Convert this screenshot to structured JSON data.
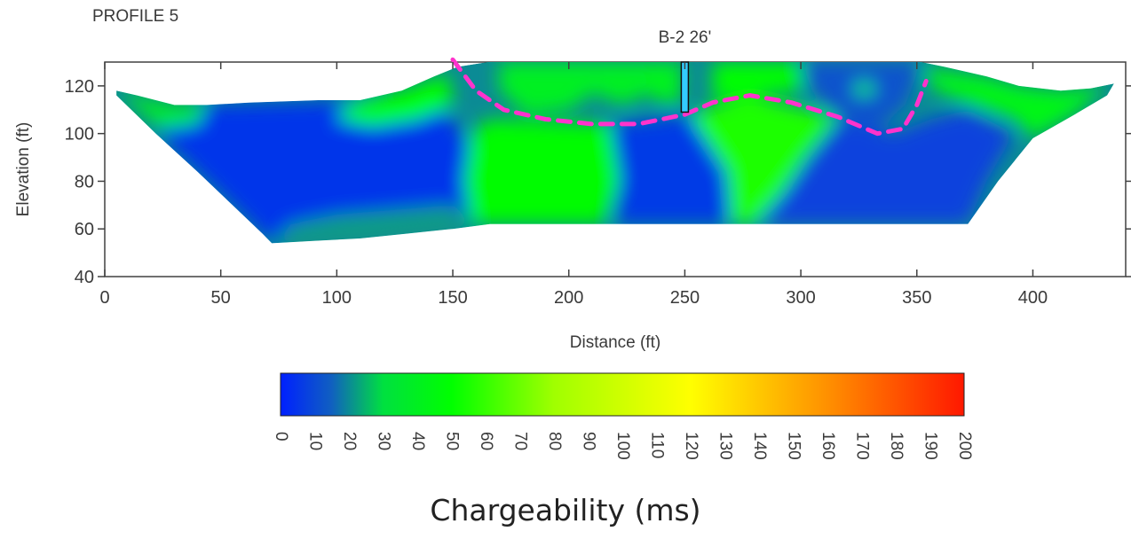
{
  "chart_data": {
    "type": "heatmap",
    "title": "PROFILE 5",
    "xlabel": "Distance (ft)",
    "ylabel": "Elevation (ft)",
    "xlim": [
      0,
      440
    ],
    "ylim": [
      40,
      130
    ],
    "x_ticks": [
      0,
      50,
      100,
      150,
      200,
      250,
      300,
      350,
      400
    ],
    "y_ticks": [
      40,
      60,
      80,
      100,
      120
    ],
    "boring": {
      "label": "B-2 26'",
      "x": 250,
      "top_elevation": 130,
      "bottom_elevation": 109
    },
    "section_outline": [
      [
        5,
        118
      ],
      [
        14,
        116
      ],
      [
        30,
        112
      ],
      [
        44,
        112
      ],
      [
        62,
        113
      ],
      [
        92,
        114
      ],
      [
        110,
        114
      ],
      [
        128,
        118
      ],
      [
        142,
        124
      ],
      [
        152,
        128
      ],
      [
        165,
        130
      ],
      [
        352,
        130
      ],
      [
        362,
        128
      ],
      [
        380,
        124
      ],
      [
        394,
        120
      ],
      [
        412,
        118
      ],
      [
        425,
        119
      ],
      [
        435,
        121
      ],
      [
        432,
        116
      ],
      [
        418,
        108
      ],
      [
        400,
        98
      ],
      [
        385,
        80
      ],
      [
        372,
        62
      ],
      [
        308,
        62
      ],
      [
        256,
        62
      ],
      [
        220,
        62
      ],
      [
        166,
        62
      ],
      [
        150,
        60
      ],
      [
        130,
        58
      ],
      [
        110,
        56
      ],
      [
        90,
        55
      ],
      [
        72,
        54
      ],
      [
        68,
        58
      ],
      [
        55,
        70
      ],
      [
        40,
        84
      ],
      [
        22,
        100
      ],
      [
        5,
        116
      ]
    ],
    "dashed_boundary": [
      [
        150,
        131
      ],
      [
        160,
        118
      ],
      [
        172,
        110
      ],
      [
        190,
        106
      ],
      [
        210,
        104
      ],
      [
        230,
        104
      ],
      [
        250,
        108
      ],
      [
        262,
        113
      ],
      [
        278,
        116
      ],
      [
        296,
        113
      ],
      [
        316,
        107
      ],
      [
        333,
        100
      ],
      [
        344,
        102
      ],
      [
        350,
        112
      ],
      [
        354,
        122
      ]
    ],
    "zones": [
      {
        "polygon": [
          [
            40,
            112
          ],
          [
            110,
            114
          ],
          [
            130,
            118
          ],
          [
            150,
            106
          ],
          [
            160,
            90
          ],
          [
            160,
            62
          ],
          [
            110,
            56
          ],
          [
            72,
            54
          ],
          [
            55,
            70
          ],
          [
            40,
            84
          ],
          [
            25,
            98
          ],
          [
            22,
            108
          ]
        ],
        "value": 5
      },
      {
        "polygon": [
          [
            105,
            112
          ],
          [
            128,
            118
          ],
          [
            148,
            125
          ],
          [
            150,
            112
          ],
          [
            135,
            106
          ],
          [
            115,
            103
          ],
          [
            100,
            106
          ]
        ],
        "value": 50
      },
      {
        "polygon": [
          [
            165,
            106
          ],
          [
            215,
            104
          ],
          [
            232,
            104
          ],
          [
            222,
            80
          ],
          [
            215,
            62
          ],
          [
            185,
            62
          ],
          [
            158,
            62
          ],
          [
            155,
            80
          ],
          [
            158,
            100
          ]
        ],
        "value": 48
      },
      {
        "polygon": [
          [
            170,
            130
          ],
          [
            212,
            130
          ],
          [
            212,
            118
          ],
          [
            200,
            110
          ],
          [
            182,
            108
          ],
          [
            170,
            118
          ]
        ],
        "value": 40
      },
      {
        "polygon": [
          [
            212,
            130
          ],
          [
            232,
            130
          ],
          [
            236,
            118
          ],
          [
            224,
            112
          ],
          [
            212,
            116
          ]
        ],
        "value": 40
      },
      {
        "polygon": [
          [
            218,
            104
          ],
          [
            252,
            108
          ],
          [
            262,
            100
          ],
          [
            272,
            80
          ],
          [
            268,
            62
          ],
          [
            220,
            62
          ],
          [
            222,
            80
          ]
        ],
        "value": 6
      },
      {
        "polygon": [
          [
            232,
            130
          ],
          [
            249,
            130
          ],
          [
            248,
            112
          ],
          [
            236,
            114
          ]
        ],
        "value": 42
      },
      {
        "polygon": [
          [
            252,
            108
          ],
          [
            278,
            116
          ],
          [
            316,
            107
          ],
          [
            302,
            90
          ],
          [
            292,
            75
          ],
          [
            285,
            62
          ],
          [
            270,
            62
          ],
          [
            268,
            84
          ]
        ],
        "value": 55
      },
      {
        "polygon": [
          [
            262,
            130
          ],
          [
            300,
            130
          ],
          [
            300,
            118
          ],
          [
            286,
            117
          ],
          [
            262,
            114
          ]
        ],
        "value": 50
      },
      {
        "polygon": [
          [
            280,
            62
          ],
          [
            292,
            75
          ],
          [
            305,
            92
          ],
          [
            318,
            106
          ],
          [
            340,
            100
          ],
          [
            356,
            106
          ],
          [
            372,
            110
          ],
          [
            392,
            100
          ],
          [
            380,
            80
          ],
          [
            372,
            62
          ]
        ],
        "value": 8
      },
      {
        "polygon": [
          [
            300,
            130
          ],
          [
            352,
            130
          ],
          [
            345,
            112
          ],
          [
            333,
            102
          ],
          [
            316,
            108
          ],
          [
            305,
            118
          ]
        ],
        "value": 12
      },
      {
        "polygon": [
          [
            323,
            121
          ],
          [
            331,
            121
          ],
          [
            332,
            117
          ],
          [
            324,
            116
          ]
        ],
        "value": 45
      },
      {
        "polygon": [
          [
            352,
            128
          ],
          [
            380,
            124
          ],
          [
            394,
            120
          ],
          [
            412,
            118
          ],
          [
            432,
            120
          ],
          [
            418,
            108
          ],
          [
            400,
            98
          ],
          [
            392,
            106
          ],
          [
            374,
            112
          ],
          [
            358,
            118
          ]
        ],
        "value": 44
      },
      {
        "polygon": [
          [
            5,
            118
          ],
          [
            14,
            116
          ],
          [
            30,
            112
          ],
          [
            44,
            112
          ],
          [
            40,
            104
          ],
          [
            24,
            102
          ],
          [
            10,
            114
          ]
        ],
        "value": 38
      },
      {
        "polygon": [
          [
            72,
            54
          ],
          [
            110,
            56
          ],
          [
            130,
            58
          ],
          [
            150,
            60
          ],
          [
            160,
            62
          ],
          [
            150,
            70
          ],
          [
            125,
            68
          ],
          [
            100,
            66
          ],
          [
            80,
            62
          ]
        ],
        "value": 22
      }
    ]
  },
  "colorbar": {
    "min": 0,
    "max": 200,
    "ticks": [
      "0",
      "10",
      "20",
      "30",
      "40",
      "50",
      "60",
      "70",
      "80",
      "90",
      "100",
      "110",
      "120",
      "130",
      "140",
      "150",
      "160",
      "170",
      "180",
      "190",
      "200"
    ],
    "label": "Chargeability (ms)",
    "stops": [
      {
        "value": 0,
        "color": "#0020ff"
      },
      {
        "value": 15,
        "color": "#1060c0"
      },
      {
        "value": 30,
        "color": "#00e040"
      },
      {
        "value": 50,
        "color": "#00ff00"
      },
      {
        "value": 80,
        "color": "#a0ff00"
      },
      {
        "value": 120,
        "color": "#ffff00"
      },
      {
        "value": 160,
        "color": "#ff9000"
      },
      {
        "value": 200,
        "color": "#ff1800"
      }
    ]
  },
  "colors": {
    "boundary": "#ff33cc",
    "boring_fill": "#33ccff",
    "axis": "#404040"
  }
}
